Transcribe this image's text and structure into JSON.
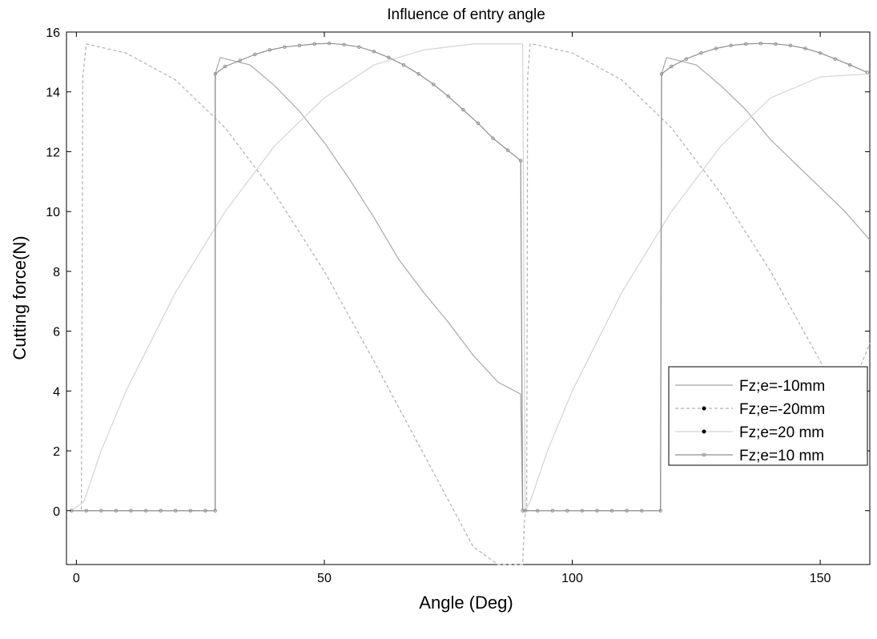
{
  "chart_data": {
    "type": "line",
    "title": "Influence of entry angle",
    "xlabel": "Angle (Deg)",
    "ylabel": "Cutting force(N)",
    "xlim": [
      -2,
      160
    ],
    "ylim": [
      -1.8,
      16
    ],
    "xticks": [
      0,
      50,
      100,
      150
    ],
    "yticks": [
      0,
      2,
      4,
      6,
      8,
      10,
      12,
      14,
      16
    ],
    "grid": false,
    "legend_position": "lower-right",
    "series": [
      {
        "name": "Fz;e=-10mm",
        "color": "#a8a8a8",
        "dash": "solid",
        "marker": "none",
        "x": [
          -1,
          28,
          28,
          29,
          35,
          40,
          45,
          50,
          55,
          60,
          65,
          70,
          75,
          80,
          85,
          89.6,
          90,
          91,
          117.8,
          118,
          119,
          125,
          130,
          135,
          140,
          145,
          150,
          155,
          160
        ],
        "y": [
          0,
          0,
          14.6,
          15.15,
          14.9,
          14.2,
          13.35,
          12.3,
          11.1,
          9.8,
          8.4,
          7.3,
          6.3,
          5.2,
          4.3,
          3.9,
          0,
          0,
          0,
          14.6,
          15.15,
          14.9,
          14.2,
          13.4,
          12.4,
          11.6,
          10.8,
          10.0,
          9.05
        ]
      },
      {
        "name": "Fz;e=-20mm",
        "color": "#b0b0b0",
        "dash": "4,3",
        "marker": "none",
        "x": [
          -1,
          1,
          1.3,
          2,
          10,
          20,
          30,
          40,
          50,
          60,
          70,
          80,
          85,
          90,
          90.4,
          90.8,
          91,
          91.5,
          92,
          100,
          110,
          120,
          130,
          140,
          150,
          155,
          160
        ],
        "y": [
          0,
          0,
          14.5,
          15.6,
          15.3,
          14.4,
          12.8,
          10.6,
          8.0,
          5.0,
          1.9,
          -1.2,
          -2.7,
          -4.3,
          -0.2,
          0,
          14.5,
          15.6,
          15.6,
          15.3,
          14.4,
          12.8,
          10.6,
          8.0,
          5.0,
          3.5,
          5.6
        ]
      },
      {
        "name": "Fz;e=20 mm",
        "color": "#d4d4d4",
        "dash": "solid",
        "marker": "none",
        "x": [
          -1,
          1.5,
          5,
          10,
          20,
          30,
          40,
          50,
          60,
          70,
          80,
          88,
          90,
          90.5,
          91.5,
          95,
          100,
          110,
          120,
          130,
          140,
          150,
          160
        ],
        "y": [
          0,
          0.3,
          2.0,
          4.0,
          7.3,
          10.0,
          12.2,
          13.8,
          14.9,
          15.4,
          15.6,
          15.6,
          15.6,
          0,
          0.3,
          2.0,
          4.0,
          7.3,
          10.0,
          12.2,
          13.8,
          14.5,
          14.6
        ]
      },
      {
        "name": "Fz;e=10 mm",
        "color": "#8e8e8e",
        "dash": "solid",
        "marker": "dot",
        "x": [
          -1,
          2,
          5,
          8,
          11,
          14,
          17,
          20,
          23,
          26,
          28,
          28,
          30,
          33,
          36,
          39,
          42,
          45,
          48,
          51,
          54,
          57,
          60,
          63,
          66,
          69,
          72,
          75,
          78,
          81,
          84,
          87,
          89.6,
          90,
          90.5,
          93,
          96,
          99,
          102,
          105,
          108,
          111,
          114,
          117.8,
          118,
          120,
          123,
          126,
          129,
          132,
          135,
          138,
          141,
          144,
          147,
          150,
          153,
          156,
          159.5
        ],
        "y": [
          0,
          0,
          0,
          0,
          0,
          0,
          0,
          0,
          0,
          0,
          0,
          14.6,
          14.85,
          15.05,
          15.25,
          15.4,
          15.5,
          15.55,
          15.6,
          15.62,
          15.58,
          15.5,
          15.35,
          15.15,
          14.9,
          14.6,
          14.25,
          13.85,
          13.4,
          12.95,
          12.45,
          12.05,
          11.7,
          0,
          0,
          0,
          0,
          0,
          0,
          0,
          0,
          0,
          0,
          0,
          14.6,
          14.85,
          15.1,
          15.3,
          15.45,
          15.55,
          15.6,
          15.62,
          15.6,
          15.55,
          15.45,
          15.3,
          15.1,
          14.9,
          14.65
        ]
      }
    ]
  }
}
